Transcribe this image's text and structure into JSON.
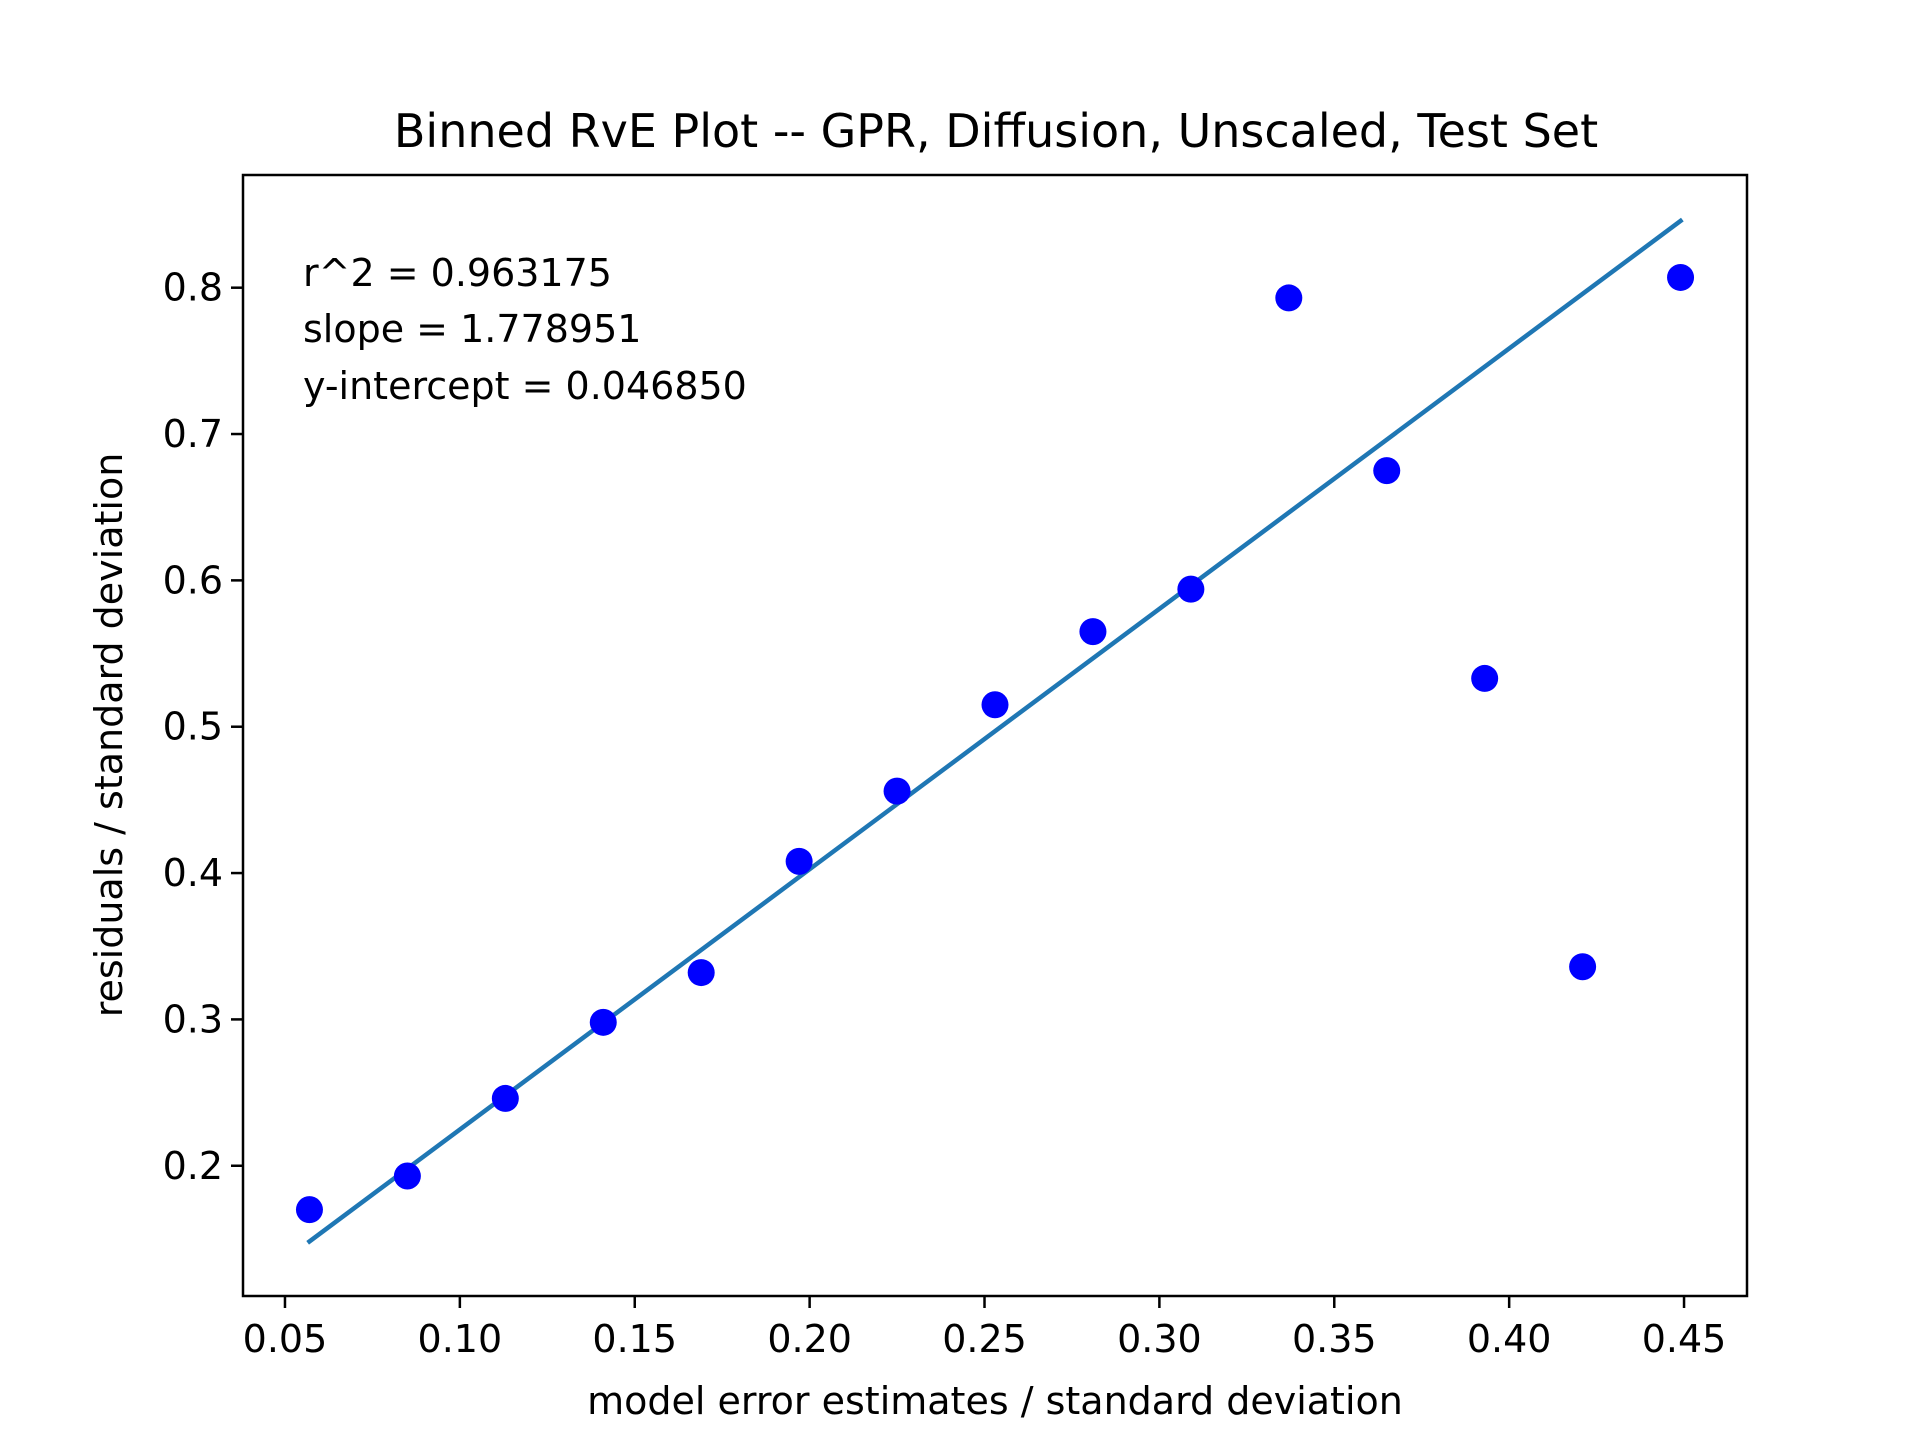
{
  "chart_data": {
    "type": "scatter",
    "title": "Binned RvE Plot -- GPR, Diffusion, Unscaled, Test Set",
    "xlabel": "model error estimates / standard deviation",
    "ylabel": "residuals / standard deviation",
    "xlim": [
      0.038,
      0.468
    ],
    "ylim": [
      0.111,
      0.877
    ],
    "x_ticks": [
      0.05,
      0.1,
      0.15,
      0.2,
      0.25,
      0.3,
      0.35,
      0.4,
      0.45
    ],
    "x_tick_labels": [
      "0.05",
      "0.10",
      "0.15",
      "0.20",
      "0.25",
      "0.30",
      "0.35",
      "0.40",
      "0.45"
    ],
    "y_ticks": [
      0.2,
      0.3,
      0.4,
      0.5,
      0.6,
      0.7,
      0.8
    ],
    "y_tick_labels": [
      "0.2",
      "0.3",
      "0.4",
      "0.5",
      "0.6",
      "0.7",
      "0.8"
    ],
    "grid": false,
    "series": [
      {
        "type": "scatter",
        "color": "#0000ff",
        "points": [
          {
            "x": 0.057,
            "y": 0.17
          },
          {
            "x": 0.085,
            "y": 0.193
          },
          {
            "x": 0.113,
            "y": 0.246
          },
          {
            "x": 0.141,
            "y": 0.298
          },
          {
            "x": 0.169,
            "y": 0.332
          },
          {
            "x": 0.197,
            "y": 0.408
          },
          {
            "x": 0.225,
            "y": 0.456
          },
          {
            "x": 0.253,
            "y": 0.515
          },
          {
            "x": 0.281,
            "y": 0.565
          },
          {
            "x": 0.309,
            "y": 0.594
          },
          {
            "x": 0.337,
            "y": 0.793
          },
          {
            "x": 0.365,
            "y": 0.675
          },
          {
            "x": 0.393,
            "y": 0.533
          },
          {
            "x": 0.421,
            "y": 0.336
          },
          {
            "x": 0.449,
            "y": 0.807
          }
        ]
      },
      {
        "type": "line",
        "color": "#1f77b4",
        "slope": 1.778951,
        "intercept": 0.04685,
        "x_range": [
          0.057,
          0.449
        ]
      }
    ],
    "annotations": [
      "r^2 = 0.963175",
      "slope = 1.778951",
      "y-intercept = 0.046850"
    ]
  }
}
